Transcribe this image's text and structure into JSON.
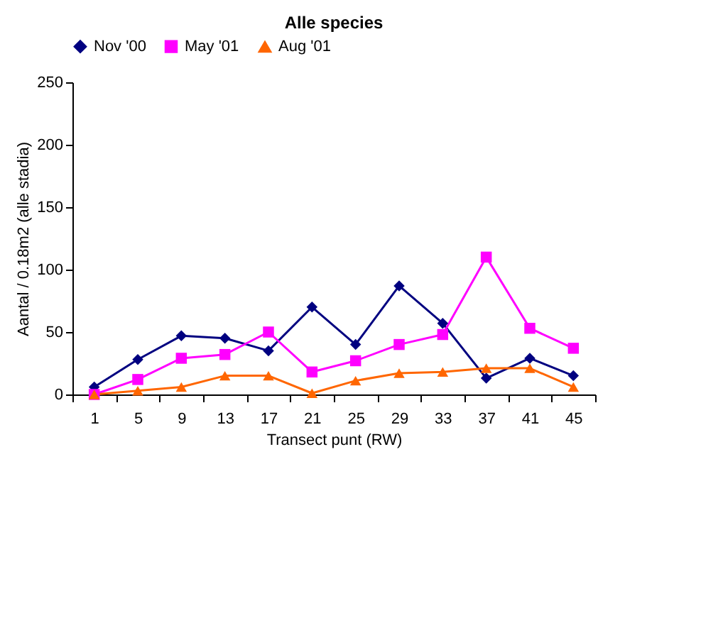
{
  "chart_data": {
    "type": "line",
    "title": "Alle species",
    "xlabel": "Transect punt (RW)",
    "ylabel": "Aantal / 0.18m2 (alle stadia)",
    "categories": [
      "1",
      "5",
      "9",
      "13",
      "17",
      "21",
      "25",
      "29",
      "33",
      "37",
      "41",
      "45"
    ],
    "series": [
      {
        "name": "Nov '00",
        "color": "#000080",
        "marker": "diamond",
        "values": [
          6,
          28,
          47,
          45,
          35,
          70,
          40,
          87,
          57,
          13,
          29,
          15
        ]
      },
      {
        "name": "May '01",
        "color": "#ff00ff",
        "marker": "square",
        "values": [
          0,
          12,
          29,
          32,
          50,
          18,
          27,
          40,
          48,
          110,
          53,
          37
        ]
      },
      {
        "name": "Aug '01",
        "color": "#ff6600",
        "marker": "triangle",
        "values": [
          0,
          3,
          6,
          15,
          15,
          1,
          11,
          17,
          18,
          21,
          21,
          6
        ]
      }
    ],
    "ylim": [
      0,
      250
    ],
    "yticks": [
      0,
      50,
      100,
      150,
      200,
      250
    ],
    "grid": false,
    "legend": "top",
    "line_style": "solid"
  }
}
